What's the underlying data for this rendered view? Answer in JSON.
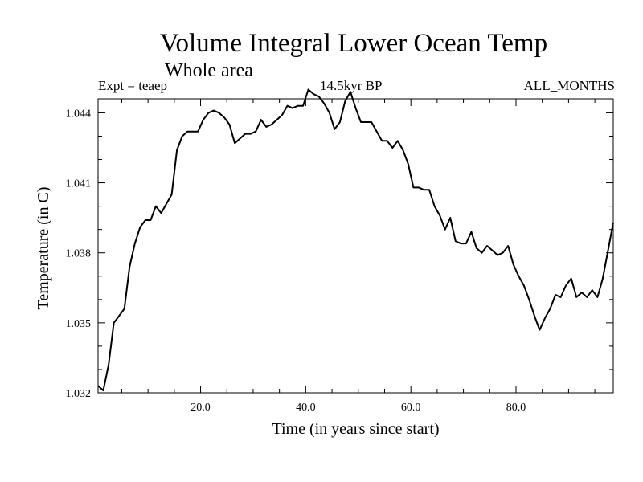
{
  "chart_data": {
    "type": "line",
    "title": "Volume Integral Lower Ocean Temp",
    "subtitle": "Whole area",
    "header_left": "Expt = teaep",
    "header_center": "14.5kyr BP",
    "header_right": "ALL_MONTHS",
    "xlabel": "Time (in years since start)",
    "ylabel": "Temperature (in C)",
    "xlim": [
      0.5,
      98.5
    ],
    "ylim": [
      1.032,
      1.0446
    ],
    "x_ticks": [
      20,
      40,
      60,
      80
    ],
    "x_tick_labels": [
      "20.0",
      "40.0",
      "60.0",
      "80.0"
    ],
    "y_ticks": [
      1.032,
      1.035,
      1.038,
      1.041,
      1.044
    ],
    "y_tick_labels": [
      "1.032",
      "1.035",
      "1.038",
      "1.041",
      "1.044"
    ],
    "series": [
      {
        "name": "Lower Ocean Temp",
        "color": "#000000",
        "x": [
          0.5,
          1.5,
          2.5,
          3.5,
          4.5,
          5.5,
          6.5,
          7.5,
          8.5,
          9.5,
          10.5,
          11.5,
          12.5,
          13.5,
          14.5,
          15.5,
          16.5,
          17.5,
          18.5,
          19.5,
          20.5,
          21.5,
          22.5,
          23.5,
          24.5,
          25.5,
          26.5,
          27.5,
          28.5,
          29.5,
          30.5,
          31.5,
          32.5,
          33.5,
          34.5,
          35.5,
          36.5,
          37.5,
          38.5,
          39.5,
          40.5,
          41.5,
          42.5,
          43.5,
          44.5,
          45.5,
          46.5,
          47.5,
          48.5,
          49.5,
          50.5,
          51.5,
          52.5,
          53.5,
          54.5,
          55.5,
          56.5,
          57.5,
          58.5,
          59.5,
          60.5,
          61.5,
          62.5,
          63.5,
          64.5,
          65.5,
          66.5,
          67.5,
          68.5,
          69.5,
          70.5,
          71.5,
          72.5,
          73.5,
          74.5,
          75.5,
          76.5,
          77.5,
          78.5,
          79.5,
          80.5,
          81.5,
          82.5,
          83.5,
          84.5,
          85.5,
          86.5,
          87.5,
          88.5,
          89.5,
          90.5,
          91.5,
          92.5,
          93.5,
          94.5,
          95.5,
          96.5,
          97.5,
          98.5
        ],
        "y": [
          1.0323,
          1.0321,
          1.0332,
          1.035,
          1.0353,
          1.0356,
          1.0374,
          1.0384,
          1.0391,
          1.0394,
          1.0394,
          1.04,
          1.0397,
          1.0401,
          1.0405,
          1.0424,
          1.043,
          1.0432,
          1.0432,
          1.0432,
          1.0437,
          1.044,
          1.0441,
          1.044,
          1.0438,
          1.0435,
          1.0427,
          1.0429,
          1.0431,
          1.0431,
          1.0432,
          1.0437,
          1.0434,
          1.0435,
          1.0437,
          1.0439,
          1.0443,
          1.0442,
          1.0443,
          1.0443,
          1.045,
          1.0448,
          1.0447,
          1.0444,
          1.044,
          1.0433,
          1.0436,
          1.0445,
          1.0449,
          1.0442,
          1.0436,
          1.0436,
          1.0436,
          1.0432,
          1.0428,
          1.0428,
          1.0425,
          1.0428,
          1.0424,
          1.0418,
          1.0408,
          1.0408,
          1.0407,
          1.0407,
          1.04,
          1.0396,
          1.039,
          1.0395,
          1.0385,
          1.0384,
          1.0384,
          1.0389,
          1.0382,
          1.038,
          1.0383,
          1.0381,
          1.0379,
          1.038,
          1.0383,
          1.0375,
          1.037,
          1.0366,
          1.036,
          1.0353,
          1.0347,
          1.0352,
          1.0356,
          1.0362,
          1.0361,
          1.0366,
          1.0369,
          1.0361,
          1.0363,
          1.0361,
          1.0364,
          1.0361,
          1.0369,
          1.0381,
          1.0393
        ]
      }
    ]
  }
}
